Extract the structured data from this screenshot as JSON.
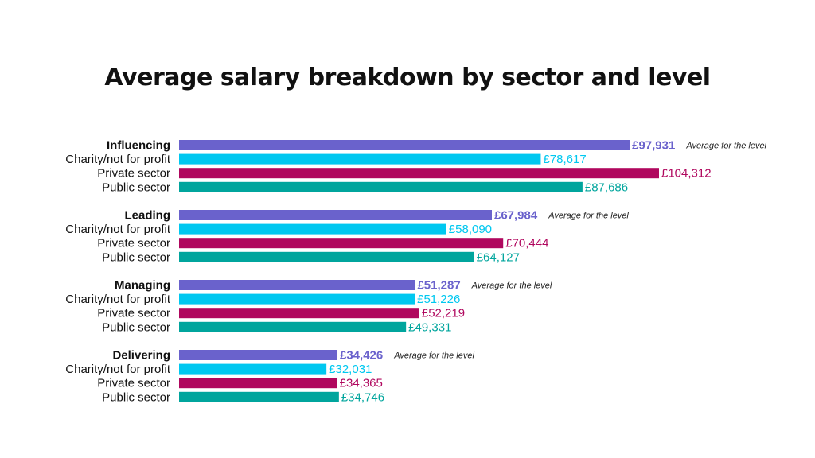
{
  "chart_data": {
    "type": "bar",
    "orientation": "horizontal",
    "title": "Average salary breakdown by sector and level",
    "average_note": "Average for the level",
    "colors": {
      "average": "#6a62cc",
      "charity": "#00c8f0",
      "private": "#b0075e",
      "public": "#00a59d"
    },
    "xlim": [
      0,
      104312
    ],
    "axes_visible": false,
    "grid": false,
    "groups": [
      {
        "level": "Influencing",
        "bars": [
          {
            "label": "Influencing",
            "kind": "average",
            "value": 97931,
            "value_label": "£97,931"
          },
          {
            "label": "Charity/not for profit",
            "kind": "charity",
            "value": 78617,
            "value_label": "£78,617"
          },
          {
            "label": "Private sector",
            "kind": "private",
            "value": 104312,
            "value_label": "£104,312"
          },
          {
            "label": "Public sector",
            "kind": "public",
            "value": 87686,
            "value_label": "£87,686"
          }
        ]
      },
      {
        "level": "Leading",
        "bars": [
          {
            "label": "Leading",
            "kind": "average",
            "value": 67984,
            "value_label": "£67,984"
          },
          {
            "label": "Charity/not for profit",
            "kind": "charity",
            "value": 58090,
            "value_label": "£58,090"
          },
          {
            "label": "Private sector",
            "kind": "private",
            "value": 70444,
            "value_label": "£70,444"
          },
          {
            "label": "Public sector",
            "kind": "public",
            "value": 64127,
            "value_label": "£64,127"
          }
        ]
      },
      {
        "level": "Managing",
        "bars": [
          {
            "label": "Managing",
            "kind": "average",
            "value": 51287,
            "value_label": "£51,287"
          },
          {
            "label": "Charity/not for profit",
            "kind": "charity",
            "value": 51226,
            "value_label": "£51,226"
          },
          {
            "label": "Private sector",
            "kind": "private",
            "value": 52219,
            "value_label": "£52,219"
          },
          {
            "label": "Public sector",
            "kind": "public",
            "value": 49331,
            "value_label": "£49,331"
          }
        ]
      },
      {
        "level": "Delivering",
        "bars": [
          {
            "label": "Delivering",
            "kind": "average",
            "value": 34426,
            "value_label": "£34,426"
          },
          {
            "label": "Charity/not for profit",
            "kind": "charity",
            "value": 32031,
            "value_label": "£32,031"
          },
          {
            "label": "Private sector",
            "kind": "private",
            "value": 34365,
            "value_label": "£34,365"
          },
          {
            "label": "Public sector",
            "kind": "public",
            "value": 34746,
            "value_label": "£34,746"
          }
        ]
      }
    ]
  }
}
